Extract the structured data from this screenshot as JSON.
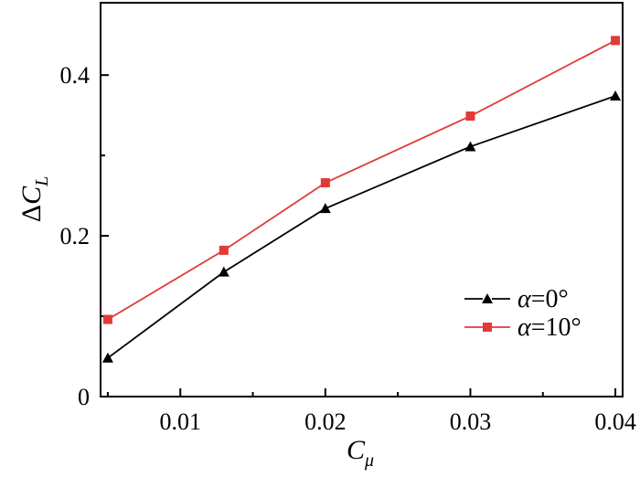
{
  "chart_data": {
    "type": "line",
    "xlabel_main": "C",
    "xlabel_sub": "μ",
    "ylabel_prefix": "Δ",
    "ylabel_main": "C",
    "ylabel_sub": "L",
    "xlim": [
      0.0045,
      0.0405
    ],
    "ylim": [
      0,
      0.49
    ],
    "x_ticks": [
      0.01,
      0.02,
      0.03,
      0.04
    ],
    "x_tick_labels": [
      "0.01",
      "0.02",
      "0.03",
      "0.04"
    ],
    "x_minor_ticks": [
      0.005,
      0.015,
      0.025,
      0.035
    ],
    "y_ticks": [
      0,
      0.2,
      0.4
    ],
    "y_tick_labels": [
      "0",
      "0.2",
      "0.4"
    ],
    "y_minor_ticks": [
      0.1,
      0.3
    ],
    "grid": false,
    "legend_position": "bottom-right",
    "series": [
      {
        "name_symbol": "α",
        "name_rest": "=0°",
        "color": "#000000",
        "marker": "triangle",
        "x": [
          0.005,
          0.013,
          0.02,
          0.03,
          0.04
        ],
        "y": [
          0.048,
          0.155,
          0.234,
          0.311,
          0.374
        ]
      },
      {
        "name_symbol": "α",
        "name_rest": "=10°",
        "color": "#e23a36",
        "marker": "square",
        "x": [
          0.005,
          0.013,
          0.02,
          0.03,
          0.04
        ],
        "y": [
          0.096,
          0.182,
          0.266,
          0.349,
          0.443
        ]
      }
    ]
  }
}
